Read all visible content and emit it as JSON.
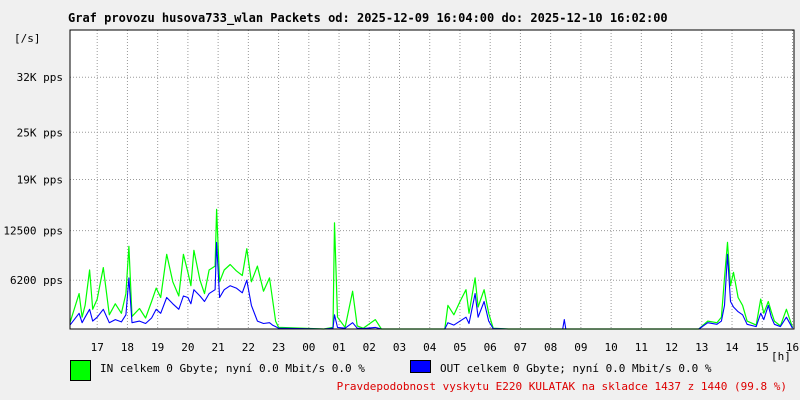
{
  "title": "Graf provozu husova733_wlan Packets od: 2025-12-09 16:04:00 do: 2025-12-10 16:02:00",
  "legend": {
    "in": "IN celkem 0 Gbyte; nyní   0.0 Mbit/s 0.0 %",
    "out": "OUT celkem 0 Gbyte; nyní   0.0 Mbit/s 0.0 %"
  },
  "footer": {
    "text": "Pravdepodobnost vyskytu E220 KULATAK na skladce 1437 z 1440 (99.8 %)",
    "color": "#dd0000"
  },
  "colors": {
    "in": "#00ff00",
    "out": "#0000ff",
    "background": "#f0f0f0",
    "plot": "#ffffff"
  },
  "chart_data": {
    "type": "area",
    "ylabel": "[/s]",
    "xlabel": "[h]",
    "ylim": [
      0,
      38000
    ],
    "yticks": [
      {
        "value": 6200,
        "label": "6200 pps"
      },
      {
        "value": 12500,
        "label": "12500 pps"
      },
      {
        "value": 19000,
        "label": "19K pps"
      },
      {
        "value": 25000,
        "label": "25K pps"
      },
      {
        "value": 32000,
        "label": "32K pps"
      }
    ],
    "xlim": [
      16.1,
      40.05
    ],
    "xticks": [
      {
        "value": 17,
        "label": "17"
      },
      {
        "value": 18,
        "label": "18"
      },
      {
        "value": 19,
        "label": "19"
      },
      {
        "value": 20,
        "label": "20"
      },
      {
        "value": 21,
        "label": "21"
      },
      {
        "value": 22,
        "label": "22"
      },
      {
        "value": 23,
        "label": "23"
      },
      {
        "value": 24,
        "label": "00"
      },
      {
        "value": 25,
        "label": "01"
      },
      {
        "value": 26,
        "label": "02"
      },
      {
        "value": 27,
        "label": "03"
      },
      {
        "value": 28,
        "label": "04"
      },
      {
        "value": 29,
        "label": "05"
      },
      {
        "value": 30,
        "label": "06"
      },
      {
        "value": 31,
        "label": "07"
      },
      {
        "value": 32,
        "label": "08"
      },
      {
        "value": 33,
        "label": "09"
      },
      {
        "value": 34,
        "label": "10"
      },
      {
        "value": 35,
        "label": "11"
      },
      {
        "value": 36,
        "label": "12"
      },
      {
        "value": 37,
        "label": "13"
      },
      {
        "value": 38,
        "label": "14"
      },
      {
        "value": 39,
        "label": "15"
      },
      {
        "value": 40,
        "label": "16"
      }
    ],
    "grid": true,
    "series": [
      {
        "name": "IN",
        "points": [
          [
            16.1,
            800
          ],
          [
            16.4,
            4500
          ],
          [
            16.5,
            1500
          ],
          [
            16.6,
            3000
          ],
          [
            16.75,
            7500
          ],
          [
            16.85,
            2500
          ],
          [
            17.0,
            3800
          ],
          [
            17.2,
            7800
          ],
          [
            17.4,
            1800
          ],
          [
            17.6,
            3200
          ],
          [
            17.8,
            2000
          ],
          [
            17.95,
            4500
          ],
          [
            18.05,
            10500
          ],
          [
            18.15,
            1600
          ],
          [
            18.4,
            2600
          ],
          [
            18.6,
            1400
          ],
          [
            18.8,
            3500
          ],
          [
            18.95,
            5200
          ],
          [
            19.1,
            4000
          ],
          [
            19.3,
            9500
          ],
          [
            19.5,
            6000
          ],
          [
            19.7,
            4200
          ],
          [
            19.85,
            9500
          ],
          [
            20.0,
            7200
          ],
          [
            20.1,
            5500
          ],
          [
            20.2,
            10000
          ],
          [
            20.4,
            6200
          ],
          [
            20.55,
            4500
          ],
          [
            20.7,
            7500
          ],
          [
            20.9,
            8000
          ],
          [
            20.95,
            15200
          ],
          [
            21.05,
            6000
          ],
          [
            21.2,
            7500
          ],
          [
            21.4,
            8200
          ],
          [
            21.6,
            7400
          ],
          [
            21.8,
            6800
          ],
          [
            21.95,
            10200
          ],
          [
            22.1,
            6000
          ],
          [
            22.3,
            8000
          ],
          [
            22.5,
            4800
          ],
          [
            22.7,
            6500
          ],
          [
            22.8,
            3800
          ],
          [
            22.9,
            1000
          ],
          [
            23.0,
            200
          ],
          [
            24.5,
            0
          ],
          [
            24.8,
            200
          ],
          [
            24.85,
            13500
          ],
          [
            24.95,
            1500
          ],
          [
            25.2,
            200
          ],
          [
            25.45,
            4800
          ],
          [
            25.6,
            400
          ],
          [
            25.8,
            100
          ],
          [
            26.2,
            1200
          ],
          [
            26.4,
            0
          ],
          [
            28.5,
            0
          ],
          [
            28.6,
            3000
          ],
          [
            28.8,
            1800
          ],
          [
            29.0,
            3500
          ],
          [
            29.2,
            5000
          ],
          [
            29.3,
            2000
          ],
          [
            29.5,
            6500
          ],
          [
            29.6,
            2800
          ],
          [
            29.8,
            5000
          ],
          [
            29.95,
            2000
          ],
          [
            30.1,
            100
          ],
          [
            30.6,
            0
          ],
          [
            36.9,
            0
          ],
          [
            37.2,
            1000
          ],
          [
            37.5,
            800
          ],
          [
            37.65,
            1500
          ],
          [
            37.75,
            6500
          ],
          [
            37.85,
            11000
          ],
          [
            37.95,
            5500
          ],
          [
            38.05,
            7200
          ],
          [
            38.2,
            4000
          ],
          [
            38.35,
            3000
          ],
          [
            38.5,
            1000
          ],
          [
            38.8,
            500
          ],
          [
            38.95,
            3800
          ],
          [
            39.05,
            2000
          ],
          [
            39.2,
            3500
          ],
          [
            39.3,
            2200
          ],
          [
            39.4,
            1000
          ],
          [
            39.6,
            400
          ],
          [
            39.8,
            2500
          ],
          [
            40.0,
            200
          ]
        ]
      },
      {
        "name": "OUT",
        "points": [
          [
            16.1,
            500
          ],
          [
            16.4,
            2000
          ],
          [
            16.5,
            800
          ],
          [
            16.6,
            1500
          ],
          [
            16.75,
            2500
          ],
          [
            16.85,
            1000
          ],
          [
            17.0,
            1500
          ],
          [
            17.2,
            2500
          ],
          [
            17.4,
            800
          ],
          [
            17.6,
            1200
          ],
          [
            17.8,
            900
          ],
          [
            17.95,
            1800
          ],
          [
            18.05,
            6500
          ],
          [
            18.15,
            800
          ],
          [
            18.4,
            1000
          ],
          [
            18.6,
            700
          ],
          [
            18.8,
            1400
          ],
          [
            18.95,
            2500
          ],
          [
            19.1,
            2000
          ],
          [
            19.3,
            4000
          ],
          [
            19.5,
            3200
          ],
          [
            19.7,
            2500
          ],
          [
            19.85,
            4200
          ],
          [
            20.0,
            4000
          ],
          [
            20.1,
            3200
          ],
          [
            20.2,
            5000
          ],
          [
            20.4,
            4200
          ],
          [
            20.55,
            3500
          ],
          [
            20.7,
            4500
          ],
          [
            20.9,
            5000
          ],
          [
            20.95,
            11000
          ],
          [
            21.05,
            4000
          ],
          [
            21.2,
            5000
          ],
          [
            21.4,
            5500
          ],
          [
            21.6,
            5200
          ],
          [
            21.8,
            4600
          ],
          [
            21.95,
            6200
          ],
          [
            22.1,
            3000
          ],
          [
            22.3,
            1000
          ],
          [
            22.5,
            700
          ],
          [
            22.7,
            800
          ],
          [
            22.8,
            500
          ],
          [
            22.9,
            300
          ],
          [
            23.0,
            100
          ],
          [
            24.5,
            0
          ],
          [
            24.8,
            100
          ],
          [
            24.85,
            1800
          ],
          [
            24.95,
            200
          ],
          [
            25.2,
            100
          ],
          [
            25.45,
            800
          ],
          [
            25.6,
            100
          ],
          [
            25.8,
            50
          ],
          [
            26.2,
            200
          ],
          [
            26.4,
            0
          ],
          [
            28.5,
            0
          ],
          [
            28.6,
            800
          ],
          [
            28.8,
            500
          ],
          [
            29.0,
            1000
          ],
          [
            29.2,
            1500
          ],
          [
            29.3,
            700
          ],
          [
            29.5,
            4500
          ],
          [
            29.6,
            1500
          ],
          [
            29.8,
            3500
          ],
          [
            29.95,
            1000
          ],
          [
            30.1,
            50
          ],
          [
            30.6,
            0
          ],
          [
            32.4,
            0
          ],
          [
            32.45,
            1200
          ],
          [
            32.5,
            0
          ],
          [
            36.9,
            0
          ],
          [
            37.2,
            800
          ],
          [
            37.5,
            600
          ],
          [
            37.65,
            1000
          ],
          [
            37.75,
            3000
          ],
          [
            37.85,
            9500
          ],
          [
            37.95,
            3500
          ],
          [
            38.05,
            2800
          ],
          [
            38.2,
            2200
          ],
          [
            38.35,
            1800
          ],
          [
            38.5,
            600
          ],
          [
            38.8,
            300
          ],
          [
            38.95,
            2000
          ],
          [
            39.05,
            1200
          ],
          [
            39.2,
            3000
          ],
          [
            39.3,
            1500
          ],
          [
            39.4,
            600
          ],
          [
            39.6,
            300
          ],
          [
            39.8,
            1500
          ],
          [
            40.0,
            100
          ]
        ]
      }
    ]
  }
}
